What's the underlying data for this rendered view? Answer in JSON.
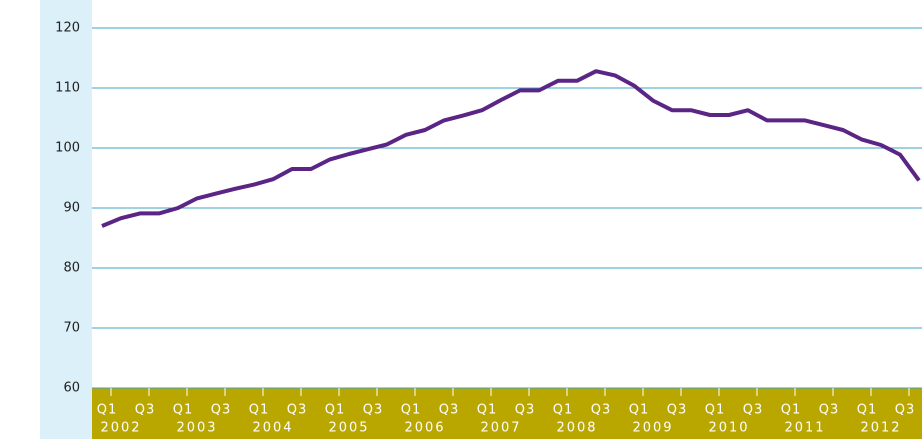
{
  "chart_data": {
    "type": "line",
    "categories": [
      "Q1",
      null,
      "Q3",
      null,
      "Q1",
      null,
      "Q3",
      null,
      "Q1",
      null,
      "Q3",
      null,
      "Q1",
      null,
      "Q3",
      null,
      "Q1",
      null,
      "Q3",
      null,
      "Q1",
      null,
      "Q3",
      null,
      "Q1",
      null,
      "Q3",
      null,
      "Q1",
      null,
      "Q3",
      null,
      "Q1",
      null,
      "Q3",
      null,
      "Q1",
      null,
      "Q3",
      null,
      "Q1",
      null,
      "Q3",
      null
    ],
    "years": [
      "2002",
      "2003",
      "2004",
      "2005",
      "2006",
      "2007",
      "2008",
      "2009",
      "2010",
      "2011",
      "2012"
    ],
    "series": [
      {
        "color": "#5a2585",
        "values": [
          87,
          88.3,
          89.1,
          89.1,
          90,
          91.6,
          92.4,
          93.2,
          93.9,
          94.8,
          96.5,
          96.5,
          98.1,
          99,
          99.8,
          100.6,
          102.2,
          103,
          104.6,
          105.4,
          106.3,
          108,
          109.6,
          109.6,
          111.2,
          111.2,
          112.8,
          112.1,
          110.4,
          107.9,
          106.3,
          106.3,
          105.5,
          105.5,
          106.3,
          104.6,
          104.6,
          104.6,
          103.8,
          103,
          101.4,
          100.5,
          98.9,
          94.6
        ]
      }
    ],
    "ylim": [
      60,
      120
    ],
    "yticks": [
      60,
      70,
      80,
      90,
      100,
      110,
      120
    ],
    "grid": true,
    "grid_color": "#3ea3c6"
  }
}
